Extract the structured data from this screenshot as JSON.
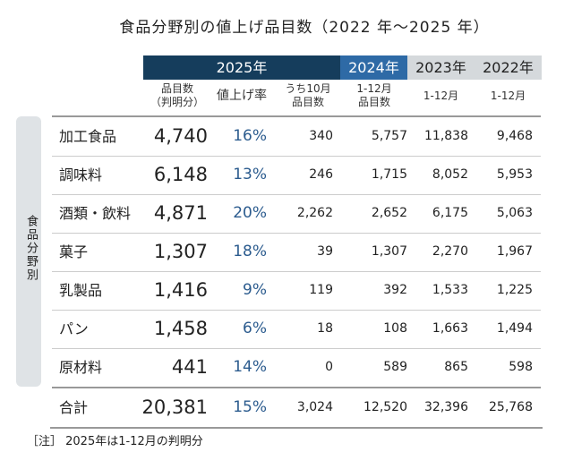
{
  "title": "食品分野別の値上げ品目数（2022 年～2025 年）",
  "headers": {
    "y2025": "2025年",
    "y2024": "2024年",
    "y2023": "2023年",
    "y2022": "2022年"
  },
  "subheaders": {
    "count": "品目数\n（判明分）",
    "rate": "値上げ率",
    "oct": "うち10月\n品目数",
    "c2024": "1-12月\n品目数",
    "c2023": "1-12月",
    "c2022": "1-12月"
  },
  "side_label": "食品分野別",
  "rows": [
    {
      "label": "加工食品",
      "count": "4,740",
      "rate": "16%",
      "oct": "340",
      "y2024": "5,757",
      "y2023": "11,838",
      "y2022": "9,468"
    },
    {
      "label": "調味料",
      "count": "6,148",
      "rate": "13%",
      "oct": "246",
      "y2024": "1,715",
      "y2023": "8,052",
      "y2022": "5,953"
    },
    {
      "label": "酒類・飲料",
      "count": "4,871",
      "rate": "20%",
      "oct": "2,262",
      "y2024": "2,652",
      "y2023": "6,175",
      "y2022": "5,063"
    },
    {
      "label": "菓子",
      "count": "1,307",
      "rate": "18%",
      "oct": "39",
      "y2024": "1,307",
      "y2023": "2,270",
      "y2022": "1,967"
    },
    {
      "label": "乳製品",
      "count": "1,416",
      "rate": "9%",
      "oct": "119",
      "y2024": "392",
      "y2023": "1,533",
      "y2022": "1,225"
    },
    {
      "label": "パン",
      "count": "1,458",
      "rate": "6%",
      "oct": "18",
      "y2024": "108",
      "y2023": "1,663",
      "y2022": "1,494"
    },
    {
      "label": "原材料",
      "count": "441",
      "rate": "14%",
      "oct": "0",
      "y2024": "589",
      "y2023": "865",
      "y2022": "598"
    }
  ],
  "total": {
    "label": "合計",
    "count": "20,381",
    "rate": "15%",
    "oct": "3,024",
    "y2024": "12,520",
    "y2023": "32,396",
    "y2022": "25,768"
  },
  "note": "［注］ 2025年は1-12月の判明分",
  "colors": {
    "navy": "#153d5c",
    "blue": "#2e6aa6",
    "grey": "#d5d9dc"
  }
}
